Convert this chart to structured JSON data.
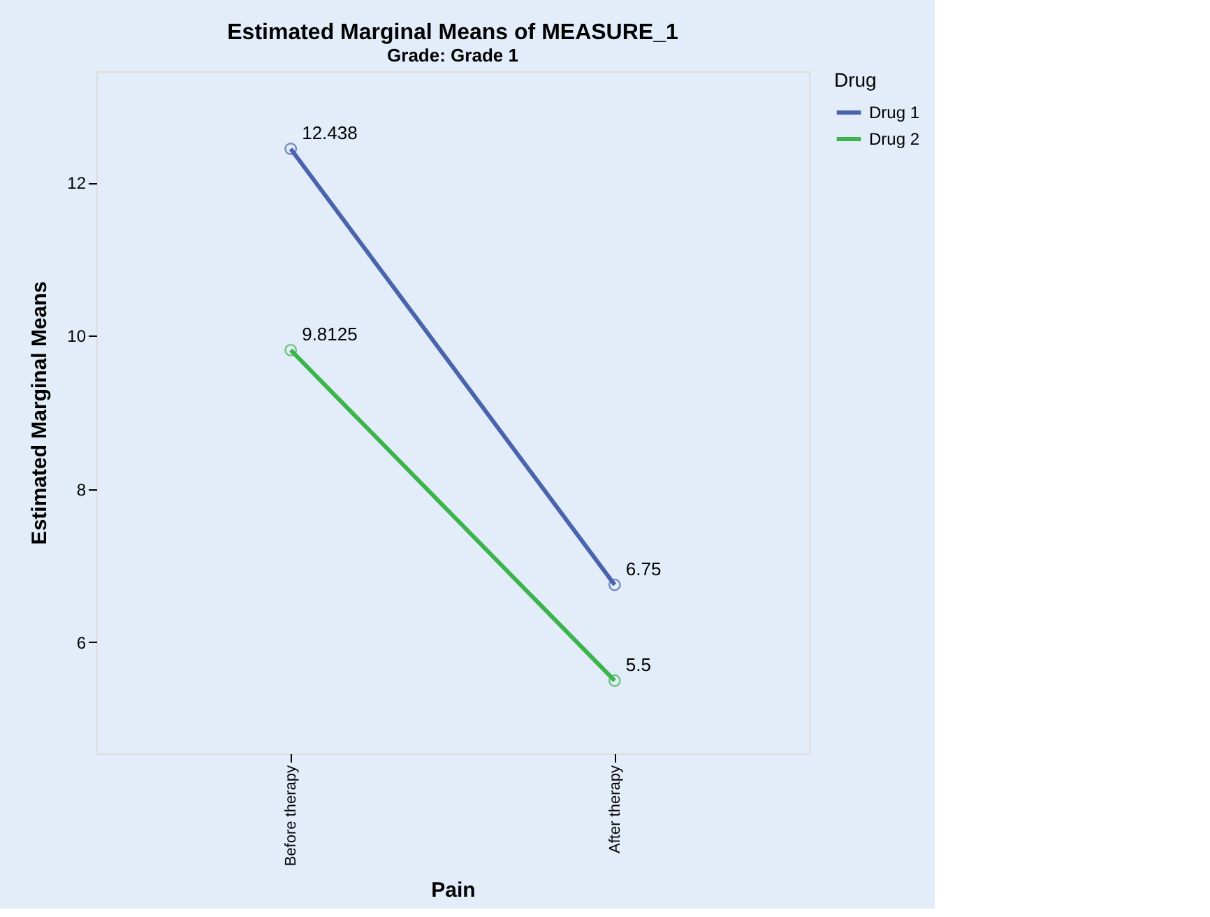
{
  "chart_data": {
    "type": "line",
    "title": "Estimated Marginal Means of MEASURE_1",
    "subtitle": "Grade: Grade 1",
    "xlabel": "Pain",
    "ylabel": "Estimated Marginal Means",
    "legend_title": "Drug",
    "categories": [
      "Before therapy",
      "After therapy"
    ],
    "series": [
      {
        "name": "Drug 1",
        "color": "#4a63ad",
        "values": [
          12.438,
          6.75
        ]
      },
      {
        "name": "Drug 2",
        "color": "#3cb44b",
        "values": [
          9.8125,
          5.5
        ]
      }
    ],
    "ylim": [
      4.55,
      13.45
    ],
    "yticks": [
      6,
      8,
      10,
      12
    ],
    "grid": false,
    "legend": "top right",
    "marker": "circle",
    "line_style": "solid",
    "data_labels": true
  }
}
